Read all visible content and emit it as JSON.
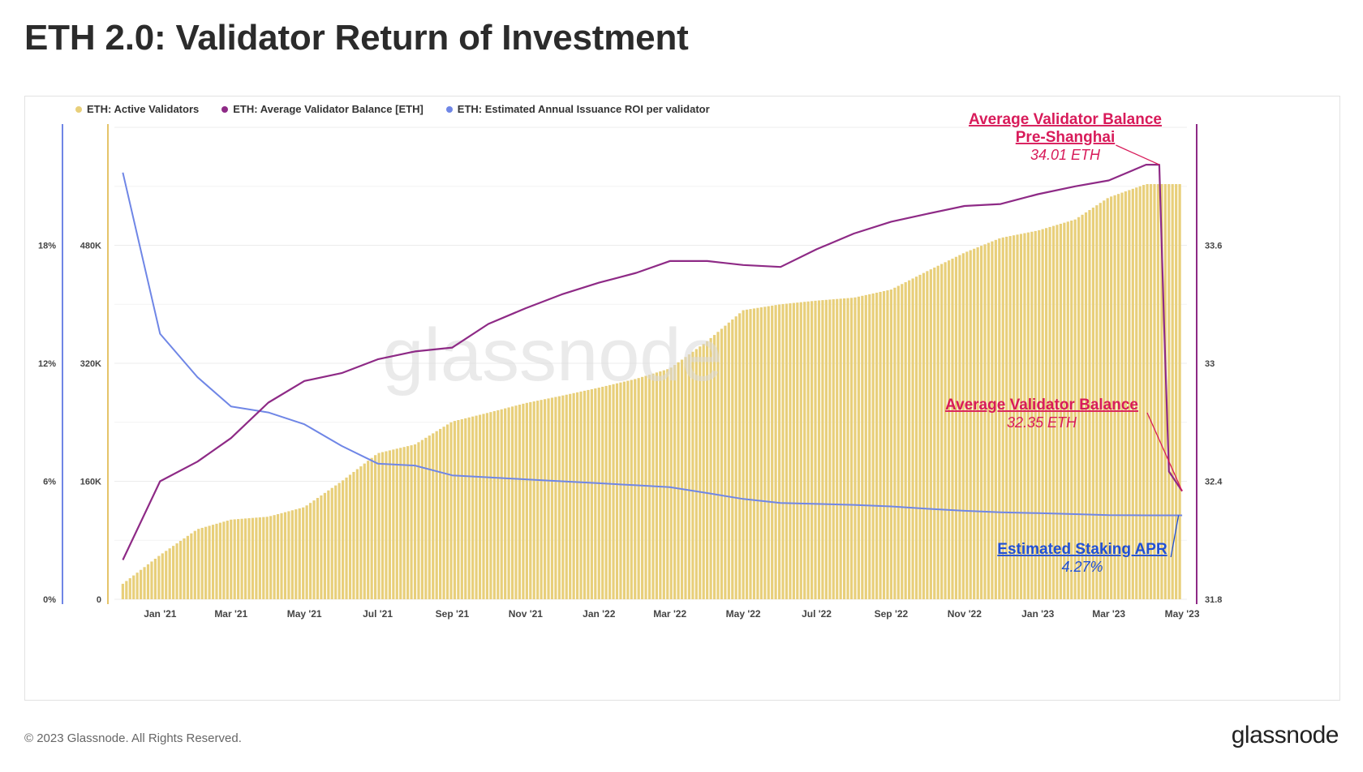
{
  "title": "ETH 2.0:  Validator Return of Investment",
  "footer": {
    "copyright": "© 2023 Glassnode. All Rights Reserved.",
    "logo_text": "glassnode"
  },
  "watermark": "glassnode",
  "colors": {
    "validators": "#e8cf7a",
    "balance": "#8e2a86",
    "roi": "#6f86e6",
    "annotation_red": "#d81b5a",
    "annotation_blue": "#1f4fd6",
    "left_axis_line": "#6f86e6",
    "mid_axis_line": "#e5c46a",
    "right_axis_line": "#8e2a86"
  },
  "chart_data": {
    "type": "bar+line",
    "legend": {
      "placement": "top-left",
      "items": [
        "ETH: Active Validators",
        "ETH: Average Validator Balance [ETH]",
        "ETH: Estimated Annual Issuance ROI per validator"
      ]
    },
    "x_ticks": [
      "Jan '21",
      "Mar '21",
      "May '21",
      "Jul '21",
      "Sep '21",
      "Nov '21",
      "Jan '22",
      "Mar '22",
      "May '22",
      "Jul '22",
      "Sep '22",
      "Nov '22",
      "Jan '23",
      "Mar '23",
      "May '23"
    ],
    "axes": {
      "roi": {
        "ticks": [
          "0%",
          "6%",
          "12%",
          "18%"
        ],
        "range": [
          0,
          24
        ]
      },
      "validators": {
        "ticks": [
          "0",
          "160K",
          "320K",
          "480K"
        ],
        "range": [
          0,
          640000
        ]
      },
      "balance": {
        "ticks": [
          "31.8",
          "32.4",
          "33",
          "33.6"
        ],
        "range": [
          31.8,
          34.2
        ]
      }
    },
    "grid": true,
    "series": [
      {
        "name": "ETH: Active Validators",
        "type": "bar",
        "axis": "validators",
        "points": [
          [
            "2020-12-01",
            21000
          ],
          [
            "2021-01-01",
            60000
          ],
          [
            "2021-02-01",
            95000
          ],
          [
            "2021-03-01",
            108000
          ],
          [
            "2021-04-01",
            112000
          ],
          [
            "2021-05-01",
            125000
          ],
          [
            "2021-06-01",
            160000
          ],
          [
            "2021-07-01",
            198000
          ],
          [
            "2021-08-01",
            210000
          ],
          [
            "2021-09-01",
            241000
          ],
          [
            "2021-10-01",
            253000
          ],
          [
            "2021-11-01",
            266000
          ],
          [
            "2021-12-01",
            276000
          ],
          [
            "2022-01-01",
            287000
          ],
          [
            "2022-02-01",
            299000
          ],
          [
            "2022-03-01",
            313000
          ],
          [
            "2022-04-01",
            350000
          ],
          [
            "2022-05-01",
            392000
          ],
          [
            "2022-06-01",
            400000
          ],
          [
            "2022-07-01",
            405000
          ],
          [
            "2022-08-01",
            409000
          ],
          [
            "2022-09-01",
            420000
          ],
          [
            "2022-10-01",
            445000
          ],
          [
            "2022-11-01",
            470000
          ],
          [
            "2022-12-01",
            490000
          ],
          [
            "2023-01-01",
            500000
          ],
          [
            "2023-02-01",
            515000
          ],
          [
            "2023-03-01",
            545000
          ],
          [
            "2023-04-01",
            563000
          ],
          [
            "2023-05-01",
            563000
          ]
        ]
      },
      {
        "name": "ETH: Average Validator Balance [ETH]",
        "type": "line",
        "axis": "balance",
        "points": [
          [
            "2020-12-01",
            32.0
          ],
          [
            "2021-01-01",
            32.4
          ],
          [
            "2021-02-01",
            32.5
          ],
          [
            "2021-03-01",
            32.62
          ],
          [
            "2021-04-01",
            32.8
          ],
          [
            "2021-05-01",
            32.91
          ],
          [
            "2021-06-01",
            32.95
          ],
          [
            "2021-07-01",
            33.02
          ],
          [
            "2021-08-01",
            33.06
          ],
          [
            "2021-09-01",
            33.08
          ],
          [
            "2021-10-01",
            33.2
          ],
          [
            "2021-11-01",
            33.28
          ],
          [
            "2021-12-01",
            33.35
          ],
          [
            "2022-01-01",
            33.41
          ],
          [
            "2022-02-01",
            33.46
          ],
          [
            "2022-03-01",
            33.52
          ],
          [
            "2022-04-01",
            33.52
          ],
          [
            "2022-05-01",
            33.5
          ],
          [
            "2022-06-01",
            33.49
          ],
          [
            "2022-07-01",
            33.58
          ],
          [
            "2022-08-01",
            33.66
          ],
          [
            "2022-09-01",
            33.72
          ],
          [
            "2022-10-01",
            33.76
          ],
          [
            "2022-11-01",
            33.8
          ],
          [
            "2022-12-01",
            33.81
          ],
          [
            "2023-01-01",
            33.86
          ],
          [
            "2023-02-01",
            33.9
          ],
          [
            "2023-03-01",
            33.93
          ],
          [
            "2023-04-01",
            34.01
          ],
          [
            "2023-04-12",
            34.01
          ],
          [
            "2023-04-16",
            33.2
          ],
          [
            "2023-04-20",
            32.45
          ],
          [
            "2023-05-01",
            32.35
          ]
        ]
      },
      {
        "name": "ETH: Estimated Annual Issuance ROI per validator",
        "type": "line",
        "axis": "roi",
        "points": [
          [
            "2020-12-01",
            21.7
          ],
          [
            "2021-01-01",
            13.5
          ],
          [
            "2021-02-01",
            11.3
          ],
          [
            "2021-03-01",
            9.8
          ],
          [
            "2021-04-01",
            9.5
          ],
          [
            "2021-05-01",
            8.9
          ],
          [
            "2021-06-01",
            7.8
          ],
          [
            "2021-07-01",
            6.9
          ],
          [
            "2021-08-01",
            6.8
          ],
          [
            "2021-09-01",
            6.3
          ],
          [
            "2021-10-01",
            6.2
          ],
          [
            "2021-11-01",
            6.1
          ],
          [
            "2021-12-01",
            6.0
          ],
          [
            "2022-01-01",
            5.9
          ],
          [
            "2022-02-01",
            5.8
          ],
          [
            "2022-03-01",
            5.7
          ],
          [
            "2022-04-01",
            5.4
          ],
          [
            "2022-05-01",
            5.1
          ],
          [
            "2022-06-01",
            4.9
          ],
          [
            "2022-07-01",
            4.85
          ],
          [
            "2022-08-01",
            4.8
          ],
          [
            "2022-09-01",
            4.72
          ],
          [
            "2022-10-01",
            4.6
          ],
          [
            "2022-11-01",
            4.5
          ],
          [
            "2022-12-01",
            4.42
          ],
          [
            "2023-01-01",
            4.38
          ],
          [
            "2023-02-01",
            4.33
          ],
          [
            "2023-03-01",
            4.28
          ],
          [
            "2023-04-01",
            4.27
          ],
          [
            "2023-05-01",
            4.27
          ]
        ]
      }
    ],
    "annotations": [
      {
        "lines": [
          "Average Validator Balance",
          "Pre-Shanghai"
        ],
        "value": "34.01 ETH",
        "color": "annotation_red",
        "target_x": "2023-04-12",
        "target_series": "balance",
        "target_y": 34.01
      },
      {
        "lines": [
          "Average Validator Balance"
        ],
        "value": "32.35 ETH",
        "color": "annotation_red",
        "target_x": "2023-05-01",
        "target_series": "balance",
        "target_y": 32.35
      },
      {
        "lines": [
          "Estimated Staking APR"
        ],
        "value": "4.27%",
        "color": "annotation_blue",
        "target_x": "2023-04-28",
        "target_series": "roi",
        "target_y": 4.27
      }
    ]
  }
}
